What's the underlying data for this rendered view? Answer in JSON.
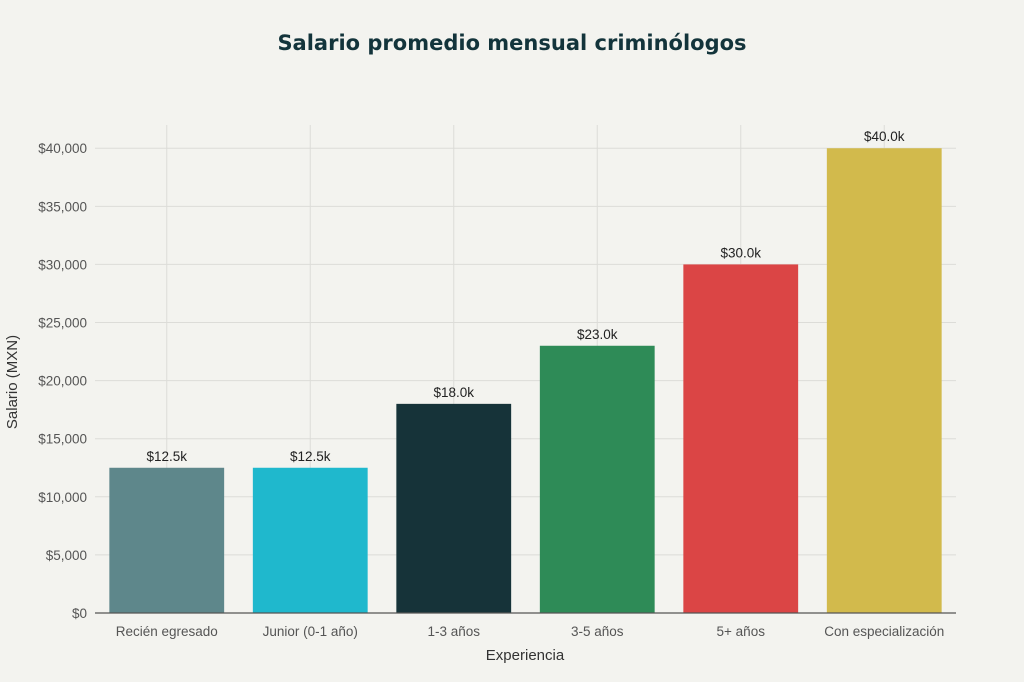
{
  "chart_data": {
    "type": "bar",
    "title": "Salario promedio mensual criminólogos",
    "xlabel": "Experiencia",
    "ylabel": "Salario (MXN)",
    "categories": [
      "Recién egresado",
      "Junior (0-1 año)",
      "1-3 años",
      "3-5 años",
      "5+ años",
      "Con especialización"
    ],
    "values": [
      12500,
      12500,
      18000,
      23000,
      30000,
      40000
    ],
    "data_labels": [
      "$12.5k",
      "$12.5k",
      "$18.0k",
      "$23.0k",
      "$30.0k",
      "$40.0k"
    ],
    "colors": [
      "#5e878b",
      "#1fb8cd",
      "#163339",
      "#2e8b57",
      "#db4545",
      "#d2ba4c"
    ],
    "ylim": [
      0,
      42000
    ],
    "yticks": [
      0,
      5000,
      10000,
      15000,
      20000,
      25000,
      30000,
      35000,
      40000
    ],
    "ytick_labels": [
      "$0",
      "$5,000",
      "$10,000",
      "$15,000",
      "$20,000",
      "$25,000",
      "$30,000",
      "$35,000",
      "$40,000"
    ],
    "grid": true
  }
}
